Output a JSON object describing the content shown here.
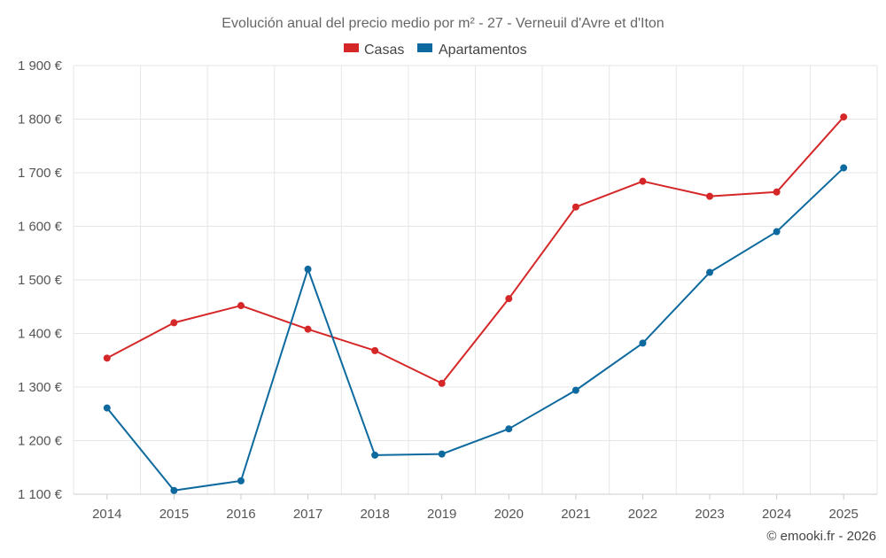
{
  "chart_data": {
    "type": "line",
    "title": "Evolución anual del precio medio por m² - 27 - Verneuil d'Avre et d'Iton",
    "categories": [
      "2014",
      "2015",
      "2016",
      "2017",
      "2018",
      "2019",
      "2020",
      "2021",
      "2022",
      "2023",
      "2024",
      "2025"
    ],
    "series": [
      {
        "name": "Casas",
        "color": "#d62728",
        "values": [
          1354,
          1420,
          1452,
          1408,
          1368,
          1307,
          1465,
          1636,
          1684,
          1656,
          1664,
          1804
        ]
      },
      {
        "name": "Apartamentos",
        "color": "#0e6a9e",
        "values": [
          1261,
          1107,
          1125,
          1520,
          1173,
          1175,
          1222,
          1294,
          1382,
          1514,
          1590,
          1709
        ]
      }
    ],
    "ylim": [
      1100,
      1900
    ],
    "yticks": [
      1100,
      1200,
      1300,
      1400,
      1500,
      1600,
      1700,
      1800,
      1900
    ],
    "ytick_labels": [
      "1 100 €",
      "1 200 €",
      "1 300 €",
      "1 400 €",
      "1 500 €",
      "1 600 €",
      "1 700 €",
      "1 800 €",
      "1 900 €"
    ],
    "xlabel": "",
    "ylabel": "",
    "grid": true,
    "legend_position": "top-center",
    "credit": "© emooki.fr - 2026"
  }
}
